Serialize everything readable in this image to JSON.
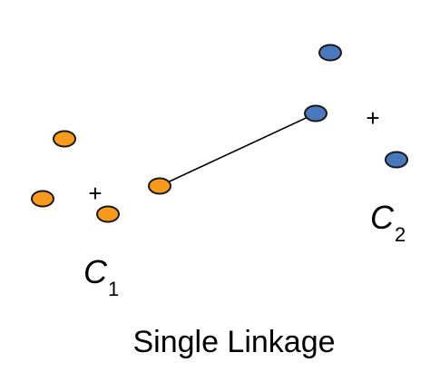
{
  "diagram": {
    "title": "Single Linkage",
    "cluster1": {
      "label": "C",
      "subscript": "1",
      "centroid_marker": "+",
      "point_color": "#F79A1E",
      "point_count": 4
    },
    "cluster2": {
      "label": "C",
      "subscript": "2",
      "centroid_marker": "+",
      "point_color": "#4A78BE",
      "point_count": 3
    },
    "link": {
      "description": "closest pair"
    }
  }
}
